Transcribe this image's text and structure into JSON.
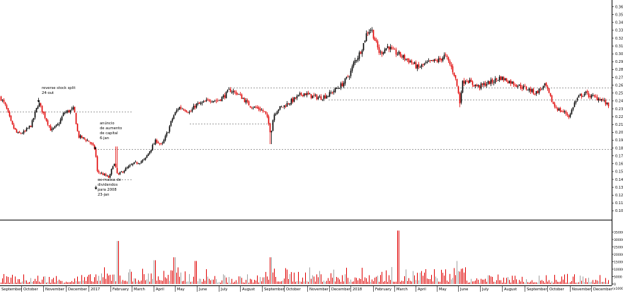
{
  "chart_data": {
    "type": "candlestick",
    "title": "",
    "xlabel": "",
    "ylabel": "",
    "price": {
      "ylim": [
        0.095,
        0.365
      ],
      "ticks": [
        0.1,
        0.11,
        0.12,
        0.13,
        0.14,
        0.15,
        0.16,
        0.17,
        0.18,
        0.19,
        0.2,
        0.21,
        0.22,
        0.23,
        0.24,
        0.25,
        0.26,
        0.27,
        0.28,
        0.29,
        0.3,
        0.31,
        0.32,
        0.33,
        0.34,
        0.35,
        0.36
      ],
      "colors": {
        "up": "#000000",
        "down": "#e00000"
      },
      "anchors": [
        [
          0,
          0.245
        ],
        [
          8,
          0.232
        ],
        [
          16,
          0.21
        ],
        [
          24,
          0.198
        ],
        [
          34,
          0.2
        ],
        [
          44,
          0.21
        ],
        [
          54,
          0.238
        ],
        [
          64,
          0.218
        ],
        [
          72,
          0.202
        ],
        [
          82,
          0.21
        ],
        [
          90,
          0.225
        ],
        [
          100,
          0.228
        ],
        [
          104,
          0.23
        ],
        [
          110,
          0.195
        ],
        [
          118,
          0.192
        ],
        [
          126,
          0.188
        ],
        [
          134,
          0.178
        ],
        [
          137,
          0.15
        ],
        [
          142,
          0.148
        ],
        [
          148,
          0.145
        ],
        [
          154,
          0.142
        ],
        [
          160,
          0.162
        ],
        [
          166,
          0.145
        ],
        [
          172,
          0.15
        ],
        [
          180,
          0.155
        ],
        [
          188,
          0.16
        ],
        [
          196,
          0.162
        ],
        [
          204,
          0.165
        ],
        [
          212,
          0.178
        ],
        [
          220,
          0.19
        ],
        [
          228,
          0.183
        ],
        [
          236,
          0.2
        ],
        [
          244,
          0.22
        ],
        [
          252,
          0.232
        ],
        [
          260,
          0.23
        ],
        [
          268,
          0.225
        ],
        [
          276,
          0.235
        ],
        [
          286,
          0.237
        ],
        [
          296,
          0.242
        ],
        [
          306,
          0.24
        ],
        [
          316,
          0.246
        ],
        [
          324,
          0.254
        ],
        [
          334,
          0.25
        ],
        [
          342,
          0.244
        ],
        [
          350,
          0.236
        ],
        [
          358,
          0.232
        ],
        [
          366,
          0.23
        ],
        [
          374,
          0.225
        ],
        [
          378,
          0.215
        ],
        [
          382,
          0.198
        ],
        [
          386,
          0.222
        ],
        [
          392,
          0.23
        ],
        [
          398,
          0.232
        ],
        [
          408,
          0.238
        ],
        [
          418,
          0.244
        ],
        [
          428,
          0.25
        ],
        [
          440,
          0.246
        ],
        [
          452,
          0.244
        ],
        [
          464,
          0.248
        ],
        [
          474,
          0.255
        ],
        [
          484,
          0.262
        ],
        [
          494,
          0.275
        ],
        [
          500,
          0.29
        ],
        [
          506,
          0.298
        ],
        [
          512,
          0.31
        ],
        [
          518,
          0.328
        ],
        [
          524,
          0.332
        ],
        [
          530,
          0.315
        ],
        [
          536,
          0.3
        ],
        [
          542,
          0.305
        ],
        [
          548,
          0.31
        ],
        [
          554,
          0.303
        ],
        [
          562,
          0.3
        ],
        [
          570,
          0.295
        ],
        [
          580,
          0.29
        ],
        [
          590,
          0.282
        ],
        [
          600,
          0.287
        ],
        [
          610,
          0.29
        ],
        [
          620,
          0.292
        ],
        [
          628,
          0.298
        ],
        [
          636,
          0.285
        ],
        [
          642,
          0.272
        ],
        [
          646,
          0.255
        ],
        [
          649,
          0.238
        ],
        [
          652,
          0.262
        ],
        [
          658,
          0.268
        ],
        [
          666,
          0.262
        ],
        [
          676,
          0.258
        ],
        [
          686,
          0.262
        ],
        [
          696,
          0.265
        ],
        [
          706,
          0.27
        ],
        [
          716,
          0.266
        ],
        [
          726,
          0.262
        ],
        [
          736,
          0.258
        ],
        [
          746,
          0.255
        ],
        [
          756,
          0.25
        ],
        [
          764,
          0.256
        ],
        [
          770,
          0.26
        ],
        [
          776,
          0.246
        ],
        [
          782,
          0.234
        ],
        [
          790,
          0.228
        ],
        [
          798,
          0.225
        ],
        [
          804,
          0.22
        ],
        [
          810,
          0.236
        ],
        [
          818,
          0.246
        ],
        [
          826,
          0.25
        ],
        [
          834,
          0.246
        ],
        [
          842,
          0.244
        ],
        [
          850,
          0.242
        ],
        [
          856,
          0.236
        ],
        [
          860,
          0.233
        ]
      ],
      "spikes": [
        {
          "x": 164,
          "high": 0.182
        },
        {
          "x": 382,
          "low": 0.185
        },
        {
          "x": 649,
          "low": 0.232
        }
      ]
    },
    "volume": {
      "ylim": [
        0,
        40000
      ],
      "ticks": [
        0,
        5000,
        10000,
        15000,
        20000,
        25000,
        30000,
        35000
      ],
      "axis_note": "(x1000)",
      "color": "#e00000",
      "gray": "#a0a0a0",
      "peaks": [
        {
          "x": 166,
          "value": 29000
        },
        {
          "x": 218,
          "value": 16000
        },
        {
          "x": 246,
          "value": 18000
        },
        {
          "x": 276,
          "value": 15500
        },
        {
          "x": 382,
          "value": 18000
        },
        {
          "x": 562,
          "value": 36000
        },
        {
          "x": 645,
          "value": 15500
        }
      ]
    },
    "x_labels": [
      {
        "label": "September",
        "x": 2
      },
      {
        "label": "October",
        "x": 33
      },
      {
        "label": "November",
        "x": 64
      },
      {
        "label": "December",
        "x": 96
      },
      {
        "label": "2017",
        "x": 128
      },
      {
        "label": "February",
        "x": 159
      },
      {
        "label": "March",
        "x": 189
      },
      {
        "label": "April",
        "x": 220
      },
      {
        "label": "May",
        "x": 250
      },
      {
        "label": "June",
        "x": 281
      },
      {
        "label": "July",
        "x": 312
      },
      {
        "label": "August",
        "x": 342
      },
      {
        "label": "September",
        "x": 373
      },
      {
        "label": "October",
        "x": 404
      },
      {
        "label": "November",
        "x": 437
      },
      {
        "label": "December",
        "x": 468
      },
      {
        "label": "2018",
        "x": 498
      },
      {
        "label": "February",
        "x": 530
      },
      {
        "label": "March",
        "x": 560
      },
      {
        "label": "April",
        "x": 590
      },
      {
        "label": "May",
        "x": 620
      },
      {
        "label": "June",
        "x": 650
      },
      {
        "label": "July",
        "x": 681
      },
      {
        "label": "August",
        "x": 712
      },
      {
        "label": "September",
        "x": 744
      },
      {
        "label": "October",
        "x": 776
      },
      {
        "label": "November",
        "x": 808
      },
      {
        "label": "December",
        "x": 838
      }
    ],
    "reference_lines": [
      {
        "y": 0.257,
        "x1": 322,
        "x2": 864
      },
      {
        "y": 0.242,
        "x1": 464,
        "x2": 864
      },
      {
        "y": 0.226,
        "x1": 0,
        "x2": 186
      },
      {
        "y": 0.211,
        "x1": 268,
        "x2": 386
      },
      {
        "y": 0.179,
        "x1": 134,
        "x2": 864
      },
      {
        "y": 0.14,
        "x1": 140,
        "x2": 188
      }
    ],
    "annotations": [
      {
        "id": "reverse-split",
        "lines": [
          "reverse stock split",
          "24-out"
        ],
        "x": 59,
        "y": 0.255,
        "arrow_x": 54,
        "arrow_from": 0.244,
        "arrow_to": 0.238
      },
      {
        "id": "capital-increase",
        "lines": [
          "anúncio",
          "de aumento",
          "de capital",
          "6-jan"
        ],
        "x": 141,
        "y": 0.21,
        "arrow_x": 134,
        "arrow_from": 0.182,
        "arrow_to": 0.178
      },
      {
        "id": "dividends",
        "lines": [
          "ex-massa de",
          "dividendos",
          "para 2008",
          "23-jan"
        ],
        "x": 138,
        "y": 0.138,
        "arrow_x": 135,
        "arrow_from": 0.132,
        "arrow_to": 0.127
      }
    ]
  }
}
